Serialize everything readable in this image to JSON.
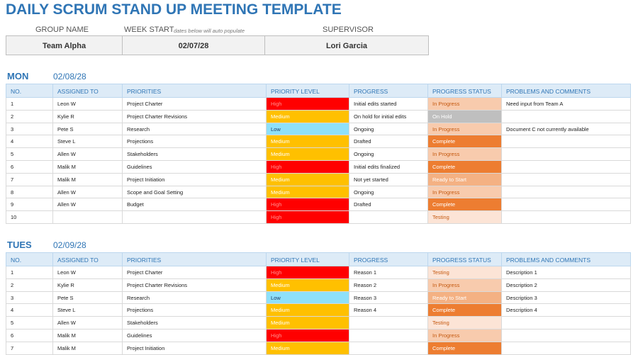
{
  "header": {
    "title": "DAILY SCRUM STAND UP MEETING TEMPLATE",
    "group_label": "GROUP NAME",
    "week_label": "WEEK START",
    "week_note": "dates below will auto populate",
    "supervisor_label": "SUPERVISOR",
    "group": "Team Alpha",
    "week_start": "02/07/28",
    "supervisor": "Lori Garcia"
  },
  "columns": [
    "NO.",
    "ASSIGNED TO",
    "PRIORITIES",
    "PRIORITY LEVEL",
    "PROGRESS",
    "PROGRESS STATUS",
    "PROBLEMS AND COMMENTS"
  ],
  "level_colors": {
    "High": {
      "bg": "#ff0000",
      "fg": "#ff8f8f"
    },
    "Medium": {
      "bg": "#ffc000",
      "fg": "#ffffff"
    },
    "Low": {
      "bg": "#8ee0fa",
      "fg": "#1f3864"
    }
  },
  "status_colors": {
    "In Progress": {
      "bg": "#f8cbad",
      "fg": "#c55a11"
    },
    "On Hold": {
      "bg": "#bfbfbf",
      "fg": "#ffffff"
    },
    "Complete": {
      "bg": "#ed7d31",
      "fg": "#ffffff"
    },
    "Ready to Start": {
      "bg": "#f4b183",
      "fg": "#ffffff"
    },
    "Testing": {
      "bg": "#fce4d6",
      "fg": "#c55a11"
    }
  },
  "days": [
    {
      "day": "MON",
      "date": "02/08/28",
      "rows": [
        [
          1,
          "Leon W",
          "Project Charter",
          "High",
          "Initial edits started",
          "In Progress",
          "Need input from Team A"
        ],
        [
          2,
          "Kylie R",
          "Project Charter Revisions",
          "Medium",
          "On hold for initial edits",
          "On Hold",
          null
        ],
        [
          3,
          "Pete S",
          "Research",
          "Low",
          "Ongoing",
          "In Progress",
          "Document C not currently available"
        ],
        [
          4,
          "Steve L",
          "Projections",
          "Medium",
          "Drafted",
          "Complete",
          null
        ],
        [
          5,
          "Allen W",
          "Stakeholders",
          "Medium",
          "Ongoing",
          "In Progress",
          null
        ],
        [
          6,
          "Malik M",
          "Guidelines",
          "High",
          "Initial edits finalized",
          "Complete",
          null
        ],
        [
          7,
          "Malik M",
          "Project Initiation",
          "Medium",
          "Not yet started",
          "Ready to Start",
          null
        ],
        [
          8,
          "Allen W",
          "Scope and Goal Setting",
          "Medium",
          "Ongoing",
          "In Progress",
          null
        ],
        [
          9,
          "Allen W",
          "Budget",
          "High",
          "Drafted",
          "Complete",
          null
        ],
        [
          10,
          null,
          null,
          "High",
          null,
          "Testing",
          null
        ]
      ]
    },
    {
      "day": "TUES",
      "date": "02/09/28",
      "rows": [
        [
          1,
          "Leon W",
          "Project Charter",
          "High",
          "Reason 1",
          "Testing",
          "Description 1"
        ],
        [
          2,
          "Kylie R",
          "Project Charter Revisions",
          "Medium",
          "Reason 2",
          "In Progress",
          "Description 2"
        ],
        [
          3,
          "Pete S",
          "Research",
          "Low",
          "Reason 3",
          "Ready to Start",
          "Description 3"
        ],
        [
          4,
          "Steve L",
          "Projections",
          "Medium",
          "Reason 4",
          "Complete",
          "Description 4"
        ],
        [
          5,
          "Allen W",
          "Stakeholders",
          "Medium",
          null,
          "Testing",
          null
        ],
        [
          6,
          "Malik M",
          "Guidelines",
          "High",
          null,
          "In Progress",
          null
        ],
        [
          7,
          "Malik M",
          "Project Initiation",
          "Medium",
          null,
          "Complete",
          null
        ]
      ]
    }
  ]
}
